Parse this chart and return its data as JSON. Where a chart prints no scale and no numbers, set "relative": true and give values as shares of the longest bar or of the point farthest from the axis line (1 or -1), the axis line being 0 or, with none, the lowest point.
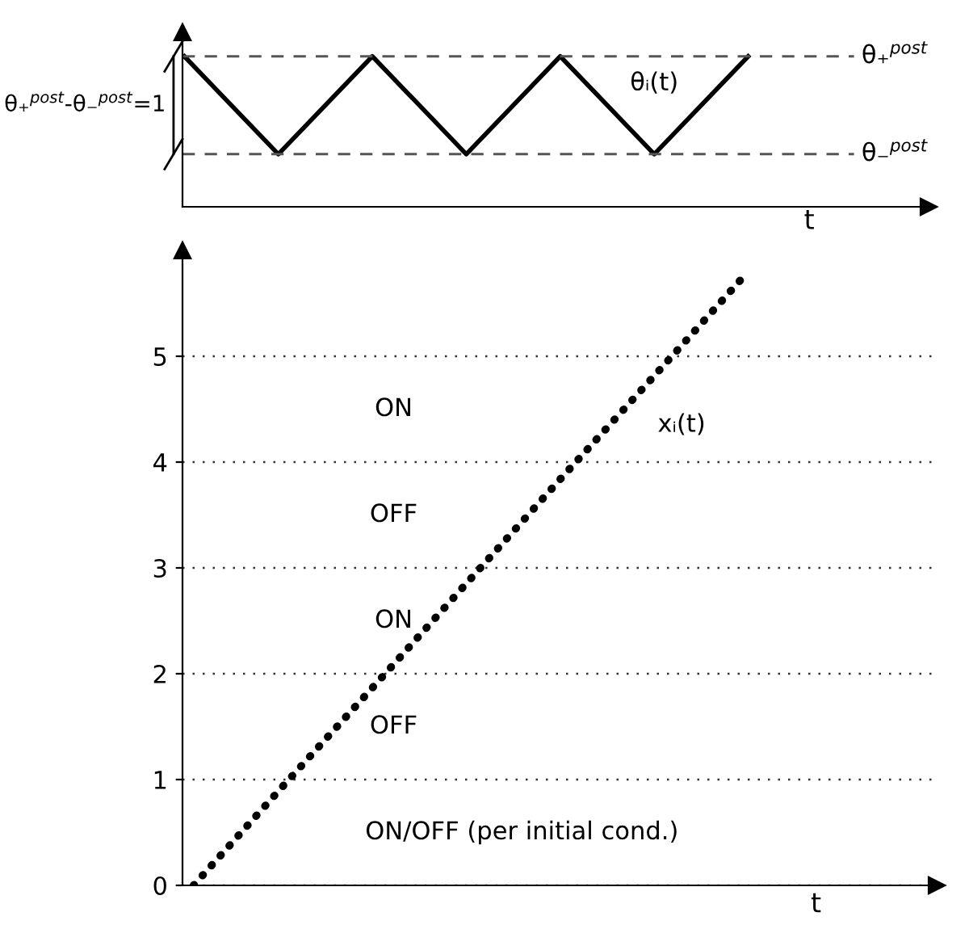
{
  "chart_data": [
    {
      "type": "line",
      "relative": true,
      "xlabel": "t",
      "categories": [
        null,
        null,
        null,
        null,
        null,
        null,
        null
      ],
      "series": [
        {
          "name": "θᵢ(t)",
          "color": "#000000",
          "values": [
            1,
            0.35,
            1,
            0.35,
            1,
            0.35,
            1
          ]
        }
      ],
      "ref_lines": [
        {
          "axis": "y",
          "value": 1,
          "label": "θ₊$^{post}$",
          "color": "#555555",
          "line_style": "dashed"
        },
        {
          "axis": "y",
          "value": 0.35,
          "label": "θ₋$^{post}$",
          "color": "#555555",
          "line_style": "dashed"
        }
      ],
      "annotations": [
        "θ₊$^{post}$-θ₋$^{post}$=1"
      ],
      "grid": false,
      "legend": false,
      "tick_labels": false,
      "line_style": "solid"
    },
    {
      "type": "line",
      "xlabel": "t",
      "categories": [
        null,
        null,
        null,
        null,
        null,
        null,
        null
      ],
      "ylim": [
        0,
        6
      ],
      "yticks": [
        0,
        1,
        2,
        3,
        4,
        5
      ],
      "series": [
        {
          "name": "xᵢ(t)",
          "color": "#000000",
          "values": [
            0,
            0.97,
            1.93,
            2.9,
            3.87,
            4.83,
            5.8
          ]
        }
      ],
      "annotations": [
        "ON",
        "OFF",
        "ON",
        "OFF",
        "ON/OFF (per initial cond.)"
      ],
      "grid": "y",
      "legend": false,
      "tick_labels": "y",
      "line_style": "dotted"
    }
  ]
}
